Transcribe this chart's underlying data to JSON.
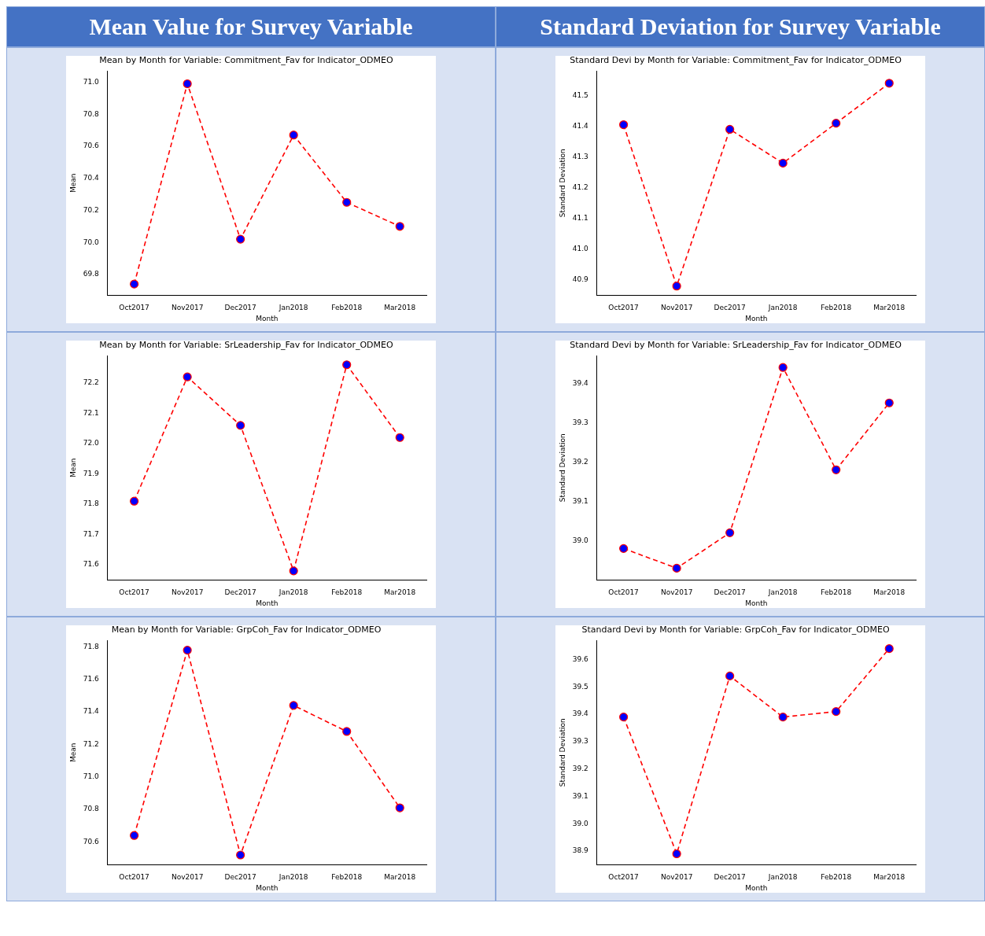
{
  "chart_data": [
    {
      "type": "line",
      "title": "Mean by Month for Variable: Commitment_Fav for Indicator_ODMEO",
      "xlabel": "Month",
      "ylabel": "Mean",
      "annotations": [
        "Mean Value for Survey Variable"
      ],
      "categories": [
        "Oct2017",
        "Nov2017",
        "Dec2017",
        "Jan2018",
        "Feb2018",
        "Mar2018"
      ],
      "series": [
        {
          "color": "#ff0000",
          "colors": [
            "#0000ff",
            "#0000ff",
            "#0000ff",
            "#0000ff",
            "#0000ff",
            "#0000ff"
          ],
          "values": [
            69.74,
            70.99,
            70.02,
            70.67,
            70.25,
            70.1
          ]
        }
      ],
      "ylim": [
        69.67,
        71.07
      ],
      "yticks": [
        {
          "value": 69.8,
          "label": "69.8"
        },
        {
          "value": 70,
          "label": "70.0"
        },
        {
          "value": 70.2,
          "label": "70.2"
        },
        {
          "value": 70.4,
          "label": "70.4"
        },
        {
          "value": 70.6,
          "label": "70.6"
        },
        {
          "value": 70.8,
          "label": "70.8"
        },
        {
          "value": 71,
          "label": "71.0"
        }
      ],
      "grid": false,
      "legend": false,
      "marker": "circle",
      "line_style": "dashed"
    },
    {
      "type": "line",
      "title": "Standard Devi by Month for Variable: Commitment_Fav for Indicator_ODMEO",
      "xlabel": "Month",
      "ylabel": "Standard Deviation",
      "annotations": [
        "Standard Deviation for Survey Variable"
      ],
      "categories": [
        "Oct2017",
        "Nov2017",
        "Dec2017",
        "Jan2018",
        "Feb2018",
        "Mar2018"
      ],
      "series": [
        {
          "color": "#ff0000",
          "colors": [
            "#0000ff",
            "#0000ff",
            "#0000ff",
            "#0000ff",
            "#0000ff",
            "#0000ff"
          ],
          "values": [
            41.405,
            40.88,
            41.39,
            41.28,
            41.41,
            41.54
          ]
        }
      ],
      "ylim": [
        40.85,
        41.58
      ],
      "yticks": [
        {
          "value": 40.9,
          "label": "40.9"
        },
        {
          "value": 41,
          "label": "41.0"
        },
        {
          "value": 41.1,
          "label": "41.1"
        },
        {
          "value": 41.2,
          "label": "41.2"
        },
        {
          "value": 41.3,
          "label": "41.3"
        },
        {
          "value": 41.4,
          "label": "41.4"
        },
        {
          "value": 41.5,
          "label": "41.5"
        }
      ],
      "grid": false,
      "legend": false,
      "marker": "circle",
      "line_style": "dashed"
    },
    {
      "type": "line",
      "title": "Mean by Month for Variable: SrLeadership_Fav for Indicator_ODMEO",
      "xlabel": "Month",
      "ylabel": "Mean",
      "categories": [
        "Oct2017",
        "Nov2017",
        "Dec2017",
        "Jan2018",
        "Feb2018",
        "Mar2018"
      ],
      "series": [
        {
          "color": "#ff0000",
          "colors": [
            "#0000ff",
            "#0000ff",
            "#0000ff",
            "#0000ff",
            "#0000ff",
            "#0000ff"
          ],
          "values": [
            71.81,
            72.22,
            72.06,
            71.58,
            72.26,
            72.02
          ]
        }
      ],
      "ylim": [
        71.55,
        72.29
      ],
      "yticks": [
        {
          "value": 71.6,
          "label": "71.6"
        },
        {
          "value": 71.7,
          "label": "71.7"
        },
        {
          "value": 71.8,
          "label": "71.8"
        },
        {
          "value": 71.9,
          "label": "71.9"
        },
        {
          "value": 72,
          "label": "72.0"
        },
        {
          "value": 72.1,
          "label": "72.1"
        },
        {
          "value": 72.2,
          "label": "72.2"
        }
      ],
      "grid": false,
      "legend": false,
      "marker": "circle",
      "line_style": "dashed"
    },
    {
      "type": "line",
      "title": "Standard Devi by Month for Variable: SrLeadership_Fav for Indicator_ODMEO",
      "xlabel": "Month",
      "ylabel": "Standard Deviation",
      "categories": [
        "Oct2017",
        "Nov2017",
        "Dec2017",
        "Jan2018",
        "Feb2018",
        "Mar2018"
      ],
      "series": [
        {
          "color": "#ff0000",
          "colors": [
            "#0000ff",
            "#0000ff",
            "#0000ff",
            "#0000ff",
            "#0000ff",
            "#0000ff"
          ],
          "values": [
            38.98,
            38.93,
            39.02,
            39.44,
            39.18,
            39.35
          ]
        }
      ],
      "ylim": [
        38.9,
        39.47
      ],
      "yticks": [
        {
          "value": 39,
          "label": "39.0"
        },
        {
          "value": 39.1,
          "label": "39.1"
        },
        {
          "value": 39.2,
          "label": "39.2"
        },
        {
          "value": 39.3,
          "label": "39.3"
        },
        {
          "value": 39.4,
          "label": "39.4"
        }
      ],
      "grid": false,
      "legend": false,
      "marker": "circle",
      "line_style": "dashed"
    },
    {
      "type": "line",
      "title": "Mean by Month for Variable: GrpCoh_Fav for Indicator_ODMEO",
      "xlabel": "Month",
      "ylabel": "Mean",
      "categories": [
        "Oct2017",
        "Nov2017",
        "Dec2017",
        "Jan2018",
        "Feb2018",
        "Mar2018"
      ],
      "series": [
        {
          "color": "#ff0000",
          "colors": [
            "#0000ff",
            "#0000ff",
            "#0000ff",
            "#0000ff",
            "#0000ff",
            "#0000ff"
          ],
          "values": [
            70.64,
            71.78,
            70.52,
            71.44,
            71.28,
            70.81
          ]
        }
      ],
      "ylim": [
        70.46,
        71.84
      ],
      "yticks": [
        {
          "value": 70.6,
          "label": "70.6"
        },
        {
          "value": 70.8,
          "label": "70.8"
        },
        {
          "value": 71,
          "label": "71.0"
        },
        {
          "value": 71.2,
          "label": "71.2"
        },
        {
          "value": 71.4,
          "label": "71.4"
        },
        {
          "value": 71.6,
          "label": "71.6"
        },
        {
          "value": 71.8,
          "label": "71.8"
        }
      ],
      "grid": false,
      "legend": false,
      "marker": "circle",
      "line_style": "dashed"
    },
    {
      "type": "line",
      "title": "Standard Devi by Month for Variable: GrpCoh_Fav for Indicator_ODMEO",
      "xlabel": "Month",
      "ylabel": "Standard Deviation",
      "categories": [
        "Oct2017",
        "Nov2017",
        "Dec2017",
        "Jan2018",
        "Feb2018",
        "Mar2018"
      ],
      "series": [
        {
          "color": "#ff0000",
          "colors": [
            "#0000ff",
            "#0000ff",
            "#0000ff",
            "#0000ff",
            "#0000ff",
            "#0000ff"
          ],
          "values": [
            39.39,
            38.89,
            39.54,
            39.39,
            39.41,
            39.64
          ]
        }
      ],
      "ylim": [
        38.85,
        39.67
      ],
      "yticks": [
        {
          "value": 38.9,
          "label": "38.9"
        },
        {
          "value": 39,
          "label": "39.0"
        },
        {
          "value": 39.1,
          "label": "39.1"
        },
        {
          "value": 39.2,
          "label": "39.2"
        },
        {
          "value": 39.3,
          "label": "39.3"
        },
        {
          "value": 39.4,
          "label": "39.4"
        },
        {
          "value": 39.5,
          "label": "39.5"
        },
        {
          "value": 39.6,
          "label": "39.6"
        }
      ],
      "grid": false,
      "legend": false,
      "marker": "circle",
      "line_style": "dashed"
    }
  ]
}
